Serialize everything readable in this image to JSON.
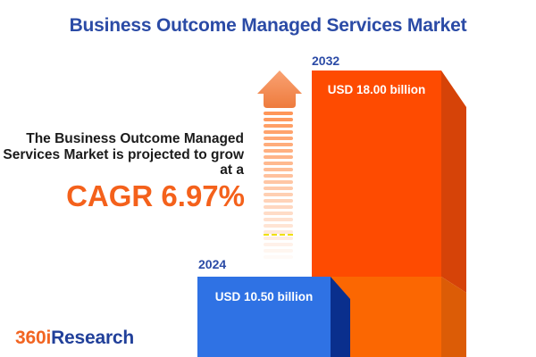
{
  "title": "Business Outcome Managed Services Market",
  "intro": {
    "line1": "The Business Outcome Managed",
    "line2": "Services Market is projected to grow",
    "line3": "at a",
    "cagr_text": "CAGR 6.97%"
  },
  "chart_data": {
    "type": "bar",
    "title": "Business Outcome Managed Services Market",
    "categories": [
      "2024",
      "2032"
    ],
    "values": [
      10.5,
      18.0
    ],
    "unit": "USD billion",
    "value_labels": [
      "USD 10.50 billion",
      "USD 18.00 billion"
    ],
    "cagr_percent": 6.97,
    "orientation": "vertical",
    "legend": false,
    "bar_colors": [
      "#2F72E4",
      "#FE4B01"
    ],
    "bar_side_colors": [
      "#0A2F8D",
      "#D64308"
    ]
  },
  "logo": {
    "text_orange": "360i",
    "text_blue": "Research"
  },
  "colors": {
    "title_blue": "#2B4BA6",
    "cagr_orange": "#F4611B",
    "body_text": "#1B1B1B",
    "bar2024_front": "#2F72E4",
    "bar2024_side": "#0A2F8D",
    "bar2032_front_upper": "#FE4B01",
    "bar2032_front_lower": "#FB6702",
    "bar2032_side_upper": "#D64308",
    "bar2032_side_lower": "#DC5C06",
    "arrow_head_top": "#F9A273",
    "arrow_head_bottom": "#EE7B3D",
    "logo_orange": "#F26522",
    "logo_blue": "#21409A"
  }
}
